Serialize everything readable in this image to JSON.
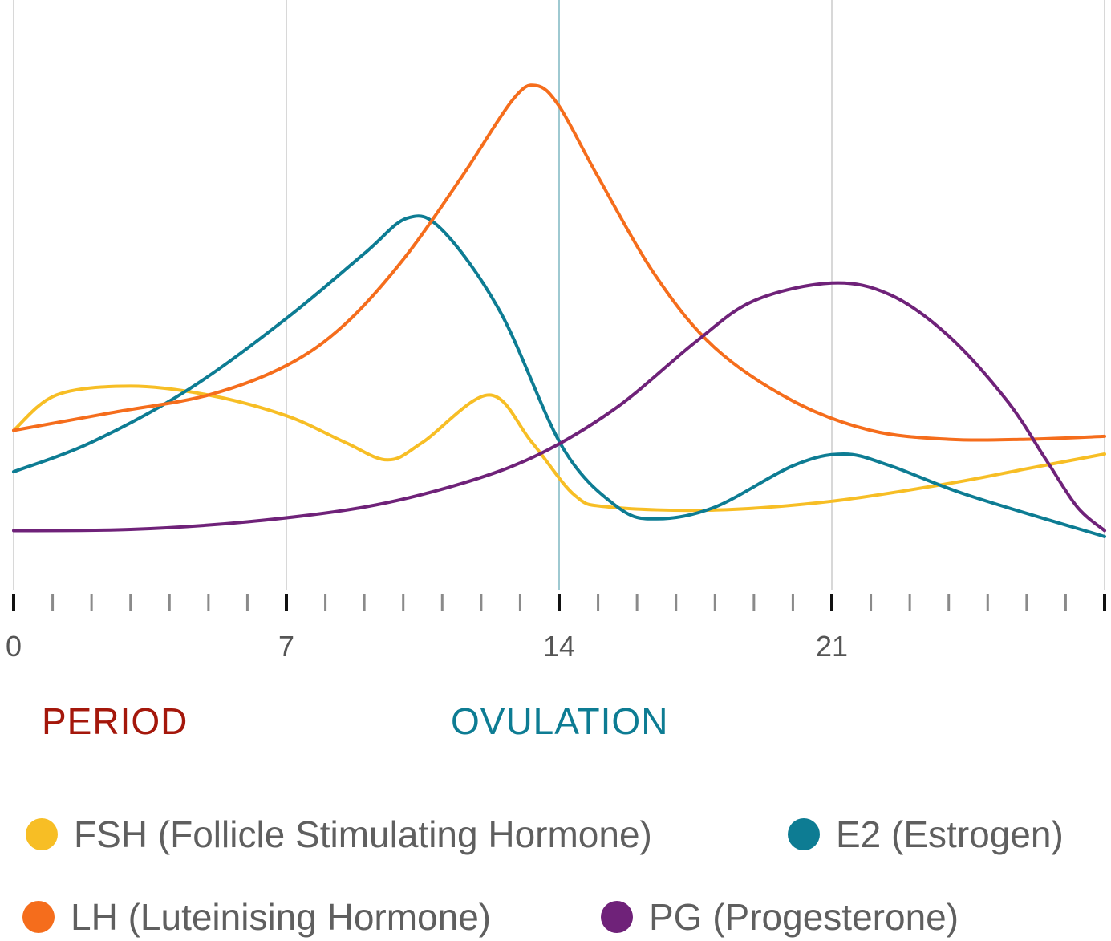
{
  "chart_data": {
    "type": "line",
    "title": "",
    "xlabel": "",
    "ylabel": "",
    "xlim": [
      0,
      28
    ],
    "ylim": [
      0,
      100
    ],
    "x_tick_labels": [
      {
        "x": 0,
        "label": "0"
      },
      {
        "x": 7,
        "label": "7"
      },
      {
        "x": 14,
        "label": "14"
      },
      {
        "x": 21,
        "label": "21"
      }
    ],
    "minor_ticks": [
      0,
      1,
      2,
      3,
      4,
      5,
      6,
      7,
      8,
      9,
      10,
      11,
      12,
      13,
      14,
      15,
      16,
      17,
      18,
      19,
      20,
      21,
      22,
      23,
      24,
      25,
      26,
      27,
      28
    ],
    "major_ticks": [
      0,
      7,
      14,
      21,
      28
    ],
    "gridlines_x": [
      0,
      7,
      14,
      21,
      28
    ],
    "ovulation_line_x": 14,
    "series": [
      {
        "name": "FSH (Follicle Stimulating Hormone)",
        "color": "#F7BE25",
        "points": [
          [
            0,
            27
          ],
          [
            1.1,
            33
          ],
          [
            3,
            34.5
          ],
          [
            5,
            33
          ],
          [
            7,
            29.5
          ],
          [
            8.5,
            25
          ],
          [
            9.6,
            22
          ],
          [
            10.5,
            25
          ],
          [
            12.2,
            33
          ],
          [
            13.3,
            25
          ],
          [
            14.4,
            16
          ],
          [
            15.3,
            14
          ],
          [
            18,
            13.5
          ],
          [
            21,
            15
          ],
          [
            24,
            18
          ],
          [
            26,
            20.5
          ],
          [
            28,
            23
          ]
        ]
      },
      {
        "name": "E2 (Estrogen)",
        "color": "#0D7C93",
        "points": [
          [
            0,
            20
          ],
          [
            2,
            25
          ],
          [
            4.5,
            34
          ],
          [
            7,
            46
          ],
          [
            9,
            57
          ],
          [
            10.1,
            63
          ],
          [
            11,
            61
          ],
          [
            12.5,
            47
          ],
          [
            14.1,
            24
          ],
          [
            15.5,
            14
          ],
          [
            16.5,
            12
          ],
          [
            18,
            14
          ],
          [
            20,
            21
          ],
          [
            21.3,
            23
          ],
          [
            22.5,
            21
          ],
          [
            24.5,
            16
          ],
          [
            28,
            9
          ]
        ]
      },
      {
        "name": "LH (Luteinising Hormone)",
        "color": "#F56D1C",
        "points": [
          [
            0,
            27
          ],
          [
            2.5,
            30
          ],
          [
            5,
            33
          ],
          [
            7,
            38
          ],
          [
            8.5,
            45
          ],
          [
            10,
            56
          ],
          [
            11.5,
            70
          ],
          [
            12.8,
            83
          ],
          [
            13.4,
            85.5
          ],
          [
            14,
            82
          ],
          [
            15,
            70
          ],
          [
            16.5,
            53
          ],
          [
            18,
            41
          ],
          [
            20,
            32
          ],
          [
            22,
            27
          ],
          [
            24,
            25.5
          ],
          [
            26,
            25.5
          ],
          [
            28,
            26
          ]
        ]
      },
      {
        "name": "PG (Progesterone)",
        "color": "#6F2279",
        "points": [
          [
            0,
            10
          ],
          [
            3,
            10.2
          ],
          [
            6,
            11.5
          ],
          [
            9,
            14
          ],
          [
            11.5,
            18
          ],
          [
            13.5,
            23
          ],
          [
            15.5,
            31
          ],
          [
            17.5,
            42
          ],
          [
            19,
            49
          ],
          [
            21,
            52
          ],
          [
            22.5,
            50
          ],
          [
            24,
            43
          ],
          [
            25.5,
            32
          ],
          [
            26.5,
            22
          ],
          [
            27.3,
            14
          ],
          [
            28,
            10
          ]
        ]
      }
    ]
  },
  "phases": {
    "period": {
      "label": "PERIOD",
      "color": "#A4170B"
    },
    "ovulation": {
      "label": "OVULATION",
      "color": "#0D7C93"
    }
  },
  "legend": [
    {
      "label": "FSH (Follicle Stimulating Hormone)",
      "color": "#F7BE25"
    },
    {
      "label": "E2 (Estrogen)",
      "color": "#0D7C93"
    },
    {
      "label": "LH (Luteinising Hormone)",
      "color": "#F56D1C"
    },
    {
      "label": "PG (Progesterone)",
      "color": "#6F2279"
    }
  ]
}
